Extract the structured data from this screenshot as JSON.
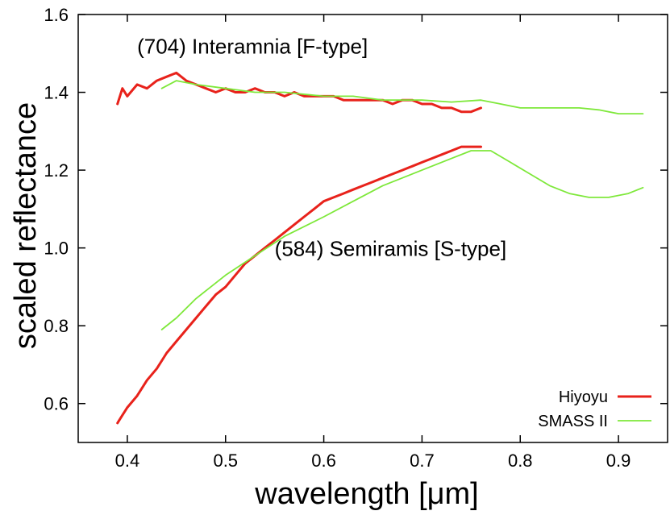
{
  "chart_data": {
    "type": "line",
    "title": "",
    "xlabel": "wavelength [μm]",
    "ylabel": "scaled reflectance",
    "xlim": [
      0.35,
      0.95
    ],
    "ylim": [
      0.5,
      1.6
    ],
    "xticks": [
      0.4,
      0.5,
      0.6,
      0.7,
      0.8,
      0.9
    ],
    "xtick_labels": [
      "0.4",
      "0.5",
      "0.6",
      "0.7",
      "0.8",
      "0.9"
    ],
    "yticks": [
      0.6,
      0.8,
      1.0,
      1.2,
      1.4,
      1.6
    ],
    "ytick_labels": [
      "0.6",
      "0.8",
      "1.0",
      "1.2",
      "1.4",
      "1.6"
    ],
    "grid": false,
    "legend": "bottom-right",
    "annotations": [
      {
        "text": "(704) Interamnia [F-type]",
        "x": 0.41,
        "y": 1.5
      },
      {
        "text": "(584) Semiramis [S-type]",
        "x": 0.55,
        "y": 0.98
      }
    ],
    "series": [
      {
        "name": "Hiyoyu",
        "object": "Interamnia",
        "color": "#e8221b",
        "x": [
          0.39,
          0.395,
          0.4,
          0.41,
          0.42,
          0.43,
          0.44,
          0.45,
          0.46,
          0.47,
          0.48,
          0.49,
          0.5,
          0.51,
          0.52,
          0.53,
          0.54,
          0.55,
          0.56,
          0.57,
          0.58,
          0.59,
          0.6,
          0.61,
          0.62,
          0.63,
          0.64,
          0.65,
          0.66,
          0.67,
          0.68,
          0.69,
          0.7,
          0.71,
          0.72,
          0.73,
          0.74,
          0.75,
          0.76
        ],
        "y": [
          1.37,
          1.41,
          1.39,
          1.42,
          1.41,
          1.43,
          1.44,
          1.45,
          1.43,
          1.42,
          1.41,
          1.4,
          1.41,
          1.4,
          1.4,
          1.41,
          1.4,
          1.4,
          1.39,
          1.4,
          1.39,
          1.39,
          1.39,
          1.39,
          1.38,
          1.38,
          1.38,
          1.38,
          1.38,
          1.37,
          1.38,
          1.38,
          1.37,
          1.37,
          1.36,
          1.36,
          1.35,
          1.35,
          1.36
        ]
      },
      {
        "name": "SMASS II",
        "object": "Interamnia",
        "color": "#7ee83a",
        "x": [
          0.435,
          0.45,
          0.47,
          0.5,
          0.53,
          0.56,
          0.6,
          0.63,
          0.66,
          0.7,
          0.73,
          0.76,
          0.78,
          0.8,
          0.82,
          0.84,
          0.86,
          0.88,
          0.9,
          0.925
        ],
        "y": [
          1.41,
          1.43,
          1.42,
          1.41,
          1.4,
          1.4,
          1.39,
          1.39,
          1.38,
          1.38,
          1.375,
          1.38,
          1.37,
          1.36,
          1.36,
          1.36,
          1.36,
          1.355,
          1.345,
          1.345
        ]
      },
      {
        "name": "Hiyoyu",
        "object": "Semiramis",
        "color": "#e8221b",
        "x": [
          0.39,
          0.395,
          0.4,
          0.41,
          0.42,
          0.43,
          0.44,
          0.45,
          0.46,
          0.47,
          0.48,
          0.49,
          0.5,
          0.51,
          0.52,
          0.53,
          0.54,
          0.55,
          0.56,
          0.57,
          0.58,
          0.59,
          0.6,
          0.61,
          0.62,
          0.63,
          0.64,
          0.65,
          0.66,
          0.67,
          0.68,
          0.69,
          0.7,
          0.71,
          0.72,
          0.73,
          0.74,
          0.75,
          0.76
        ],
        "y": [
          0.55,
          0.57,
          0.59,
          0.62,
          0.66,
          0.69,
          0.73,
          0.76,
          0.79,
          0.82,
          0.85,
          0.88,
          0.9,
          0.93,
          0.96,
          0.98,
          1.0,
          1.02,
          1.04,
          1.06,
          1.08,
          1.1,
          1.12,
          1.13,
          1.14,
          1.15,
          1.16,
          1.17,
          1.18,
          1.19,
          1.2,
          1.21,
          1.22,
          1.23,
          1.24,
          1.25,
          1.26,
          1.26,
          1.26
        ]
      },
      {
        "name": "SMASS II",
        "object": "Semiramis",
        "color": "#7ee83a",
        "x": [
          0.435,
          0.45,
          0.47,
          0.5,
          0.53,
          0.56,
          0.6,
          0.63,
          0.66,
          0.7,
          0.73,
          0.75,
          0.77,
          0.79,
          0.81,
          0.83,
          0.85,
          0.87,
          0.89,
          0.91,
          0.925
        ],
        "y": [
          0.79,
          0.82,
          0.87,
          0.93,
          0.98,
          1.03,
          1.08,
          1.12,
          1.16,
          1.2,
          1.23,
          1.25,
          1.25,
          1.22,
          1.19,
          1.16,
          1.14,
          1.13,
          1.13,
          1.14,
          1.155
        ]
      }
    ],
    "legend_entries": [
      {
        "label": "Hiyoyu",
        "color": "#e8221b"
      },
      {
        "label": "SMASS II",
        "color": "#7ee83a"
      }
    ]
  }
}
